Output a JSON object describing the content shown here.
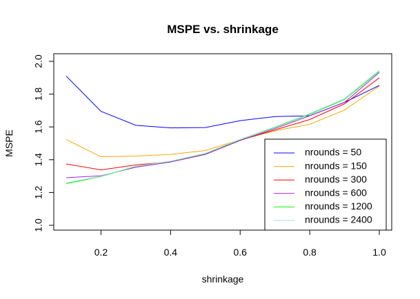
{
  "chart_data": {
    "type": "line",
    "title": "MSPE vs. shrinkage",
    "xlabel": "shrinkage",
    "ylabel": "MSPE",
    "x": [
      0.1,
      0.2,
      0.3,
      0.4,
      0.5,
      0.6,
      0.7,
      0.8,
      0.9,
      1.0
    ],
    "xlim": [
      0.1,
      1.0
    ],
    "ylim": [
      0.975,
      2.025
    ],
    "xticks": [
      "0.2",
      "0.4",
      "0.6",
      "0.8",
      "1.0"
    ],
    "xtick_values": [
      0.2,
      0.4,
      0.6,
      0.8,
      1.0
    ],
    "yticks": [
      "1.0",
      "1.2",
      "1.4",
      "1.6",
      "1.8",
      "2.0"
    ],
    "ytick_values": [
      1.0,
      1.2,
      1.4,
      1.6,
      1.8,
      2.0
    ],
    "grid": false,
    "legend_position": "bottom-right",
    "series": [
      {
        "name": "nrounds = 50",
        "color": "#0000ff",
        "values": [
          1.91,
          1.695,
          1.61,
          1.594,
          1.596,
          1.638,
          1.663,
          1.668,
          1.75,
          1.853
        ]
      },
      {
        "name": "nrounds = 150",
        "color": "#ffa500",
        "values": [
          1.523,
          1.418,
          1.422,
          1.432,
          1.456,
          1.521,
          1.576,
          1.616,
          1.703,
          1.849
        ]
      },
      {
        "name": "nrounds = 300",
        "color": "#ff0000",
        "values": [
          1.374,
          1.338,
          1.368,
          1.387,
          1.435,
          1.518,
          1.582,
          1.645,
          1.741,
          1.899
        ]
      },
      {
        "name": "nrounds = 600",
        "color": "#a020f0",
        "values": [
          1.29,
          1.302,
          1.354,
          1.386,
          1.432,
          1.517,
          1.59,
          1.668,
          1.75,
          1.932
        ]
      },
      {
        "name": "nrounds = 1200",
        "color": "#00ff00",
        "values": [
          1.254,
          1.297,
          1.359,
          1.39,
          1.437,
          1.522,
          1.597,
          1.677,
          1.767,
          1.939
        ]
      },
      {
        "name": "nrounds = 2400",
        "color": "#add8e6",
        "values": [
          1.259,
          1.299,
          1.361,
          1.391,
          1.439,
          1.524,
          1.6,
          1.681,
          1.772,
          1.945
        ]
      }
    ]
  }
}
